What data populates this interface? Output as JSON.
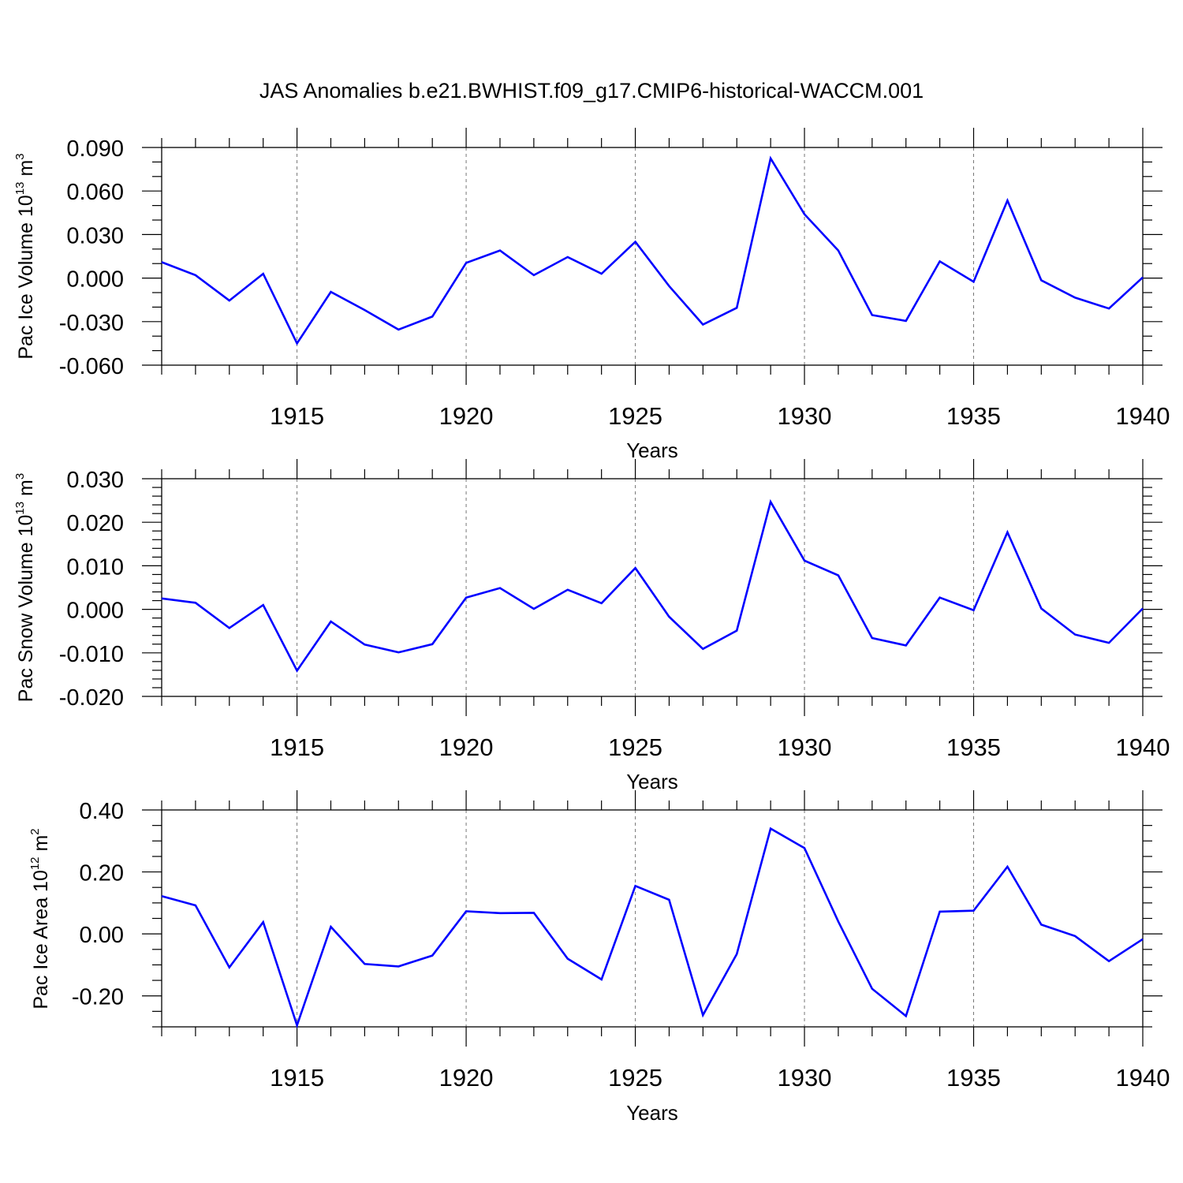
{
  "title": "JAS Anomalies b.e21.BWHIST.f09_g17.CMIP6-historical-WACCM.001",
  "colors": {
    "line": "#0000ff",
    "axis": "#000000",
    "grid": "#777777"
  },
  "chart_data": [
    {
      "type": "line",
      "ylabel_text": "Pac Ice Volume 10",
      "ylabel_exp": "13",
      "ylabel_unit": " m",
      "ylabel_unit_exp": "3",
      "xlabel": "Years",
      "xlim": [
        1911,
        1940
      ],
      "ylim": [
        -0.06,
        0.09
      ],
      "yticks": [
        -0.06,
        -0.03,
        0.0,
        0.03,
        0.06,
        0.09
      ],
      "ytick_labels": [
        "-0.060",
        "-0.030",
        "0.000",
        "0.030",
        "0.060",
        "0.090"
      ],
      "y_minor_step": 0.01,
      "xticks": [
        1915,
        1920,
        1925,
        1930,
        1935,
        1940
      ],
      "xtick_labels": [
        "1915",
        "1920",
        "1925",
        "1930",
        "1935",
        "1940"
      ],
      "grid": "vertical dashed at major x ticks",
      "x": [
        1911,
        1912,
        1913,
        1914,
        1915,
        1916,
        1917,
        1918,
        1919,
        1920,
        1921,
        1922,
        1923,
        1924,
        1925,
        1926,
        1927,
        1928,
        1929,
        1930,
        1931,
        1932,
        1933,
        1934,
        1935,
        1936,
        1937,
        1938,
        1939,
        1940
      ],
      "y": [
        0.011,
        0.002,
        -0.0155,
        0.003,
        -0.045,
        -0.0095,
        -0.022,
        -0.0355,
        -0.0265,
        0.0105,
        0.019,
        0.002,
        0.0145,
        0.003,
        0.025,
        -0.0055,
        -0.032,
        -0.0205,
        0.0825,
        0.044,
        0.019,
        -0.0255,
        -0.0295,
        0.0115,
        -0.0025,
        0.0535,
        -0.0015,
        -0.0135,
        -0.021,
        0.0005
      ]
    },
    {
      "type": "line",
      "ylabel_text": "Pac Snow Volume 10",
      "ylabel_exp": "13",
      "ylabel_unit": " m",
      "ylabel_unit_exp": "3",
      "xlabel": "Years",
      "xlim": [
        1911,
        1940
      ],
      "ylim": [
        -0.02,
        0.03
      ],
      "yticks": [
        -0.02,
        -0.01,
        0.0,
        0.01,
        0.02,
        0.03
      ],
      "ytick_labels": [
        "-0.020",
        "-0.010",
        "0.000",
        "0.010",
        "0.020",
        "0.030"
      ],
      "y_minor_step": 0.002,
      "xticks": [
        1915,
        1920,
        1925,
        1930,
        1935,
        1940
      ],
      "xtick_labels": [
        "1915",
        "1920",
        "1925",
        "1930",
        "1935",
        "1940"
      ],
      "grid": "vertical dashed at major x ticks",
      "x": [
        1911,
        1912,
        1913,
        1914,
        1915,
        1916,
        1917,
        1918,
        1919,
        1920,
        1921,
        1922,
        1923,
        1924,
        1925,
        1926,
        1927,
        1928,
        1929,
        1930,
        1931,
        1932,
        1933,
        1934,
        1935,
        1936,
        1937,
        1938,
        1939,
        1940
      ],
      "y": [
        0.0025,
        0.0015,
        -0.0043,
        0.001,
        -0.0141,
        -0.0028,
        -0.0081,
        -0.0099,
        -0.008,
        0.0027,
        0.0049,
        0.0001,
        0.0045,
        0.0014,
        0.0095,
        -0.0017,
        -0.0091,
        -0.0049,
        0.0247,
        0.0112,
        0.0078,
        -0.0066,
        -0.0083,
        0.0027,
        -0.0002,
        0.0177,
        0.0002,
        -0.0058,
        -0.0077,
        0.0002
      ]
    },
    {
      "type": "line",
      "ylabel_text": "Pac Ice Area 10",
      "ylabel_exp": "12",
      "ylabel_unit": " m",
      "ylabel_unit_exp": "2",
      "xlabel": "Years",
      "xlim": [
        1911,
        1940
      ],
      "ylim": [
        -0.3,
        0.4
      ],
      "yticks": [
        -0.2,
        0.0,
        0.2,
        0.4
      ],
      "ytick_labels": [
        "-0.20",
        "0.00",
        "0.20",
        "0.40"
      ],
      "y_minor_step": 0.05,
      "xticks": [
        1915,
        1920,
        1925,
        1930,
        1935,
        1940
      ],
      "xtick_labels": [
        "1915",
        "1920",
        "1925",
        "1930",
        "1935",
        "1940"
      ],
      "grid": "vertical dashed at major x ticks",
      "x": [
        1911,
        1912,
        1913,
        1914,
        1915,
        1916,
        1917,
        1918,
        1919,
        1920,
        1921,
        1922,
        1923,
        1924,
        1925,
        1926,
        1927,
        1928,
        1929,
        1930,
        1931,
        1932,
        1933,
        1934,
        1935,
        1936,
        1937,
        1938,
        1939,
        1940
      ],
      "y": [
        0.122,
        0.092,
        -0.108,
        0.038,
        -0.295,
        0.023,
        -0.097,
        -0.105,
        -0.07,
        0.073,
        0.067,
        0.068,
        -0.08,
        -0.147,
        0.155,
        0.11,
        -0.262,
        -0.065,
        0.34,
        0.277,
        0.04,
        -0.177,
        -0.265,
        0.072,
        0.075,
        0.217,
        0.03,
        -0.007,
        -0.088,
        -0.017
      ]
    }
  ]
}
